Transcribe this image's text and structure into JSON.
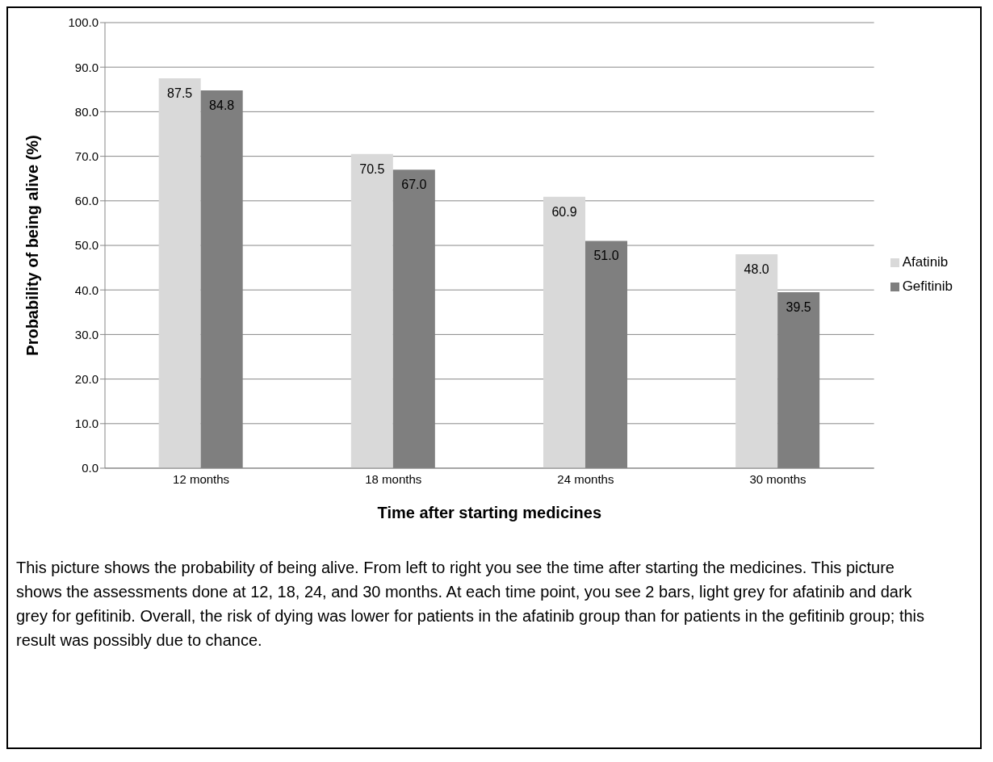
{
  "chart_data": {
    "type": "bar",
    "xlabel": "Time after starting medicines",
    "ylabel": "Probability of being alive (%)",
    "categories": [
      "12 months",
      "18 months",
      "24 months",
      "30 months"
    ],
    "series": [
      {
        "name": "Afatinib",
        "color": "#d9d9d9",
        "values": [
          87.5,
          70.5,
          60.9,
          48.0
        ],
        "value_labels": [
          "87.5",
          "70.5",
          "60.9",
          "48.0"
        ]
      },
      {
        "name": "Gefitinib",
        "color": "#7f7f7f",
        "values": [
          84.8,
          67.0,
          51.0,
          39.5
        ],
        "value_labels": [
          "84.8",
          "67.0",
          "51.0",
          "39.5"
        ]
      }
    ],
    "ylim": [
      0,
      100
    ],
    "yticks": [
      {
        "value": 0,
        "label": "0.0"
      },
      {
        "value": 10,
        "label": "10.0"
      },
      {
        "value": 20,
        "label": "20.0"
      },
      {
        "value": 30,
        "label": "30.0"
      },
      {
        "value": 40,
        "label": "40.0"
      },
      {
        "value": 50,
        "label": "50.0"
      },
      {
        "value": 60,
        "label": "60.0"
      },
      {
        "value": 70,
        "label": "70.0"
      },
      {
        "value": 80,
        "label": "80.0"
      },
      {
        "value": 90,
        "label": "90.0"
      },
      {
        "value": 100,
        "label": "100.0"
      }
    ],
    "grid": "y",
    "legend": "right",
    "annotations": [
      "This picture shows the probability of being alive. From left to right you see the time after starting the medicines. This picture shows the assessments done at 12, 18, 24, and 30 months. At each time point, you see 2 bars, light grey for afatinib and dark grey for gefitinib. Overall, the risk of dying was lower for patients in the afatinib group than for patients in the gefitinib group; this result was possibly due to chance."
    ]
  }
}
